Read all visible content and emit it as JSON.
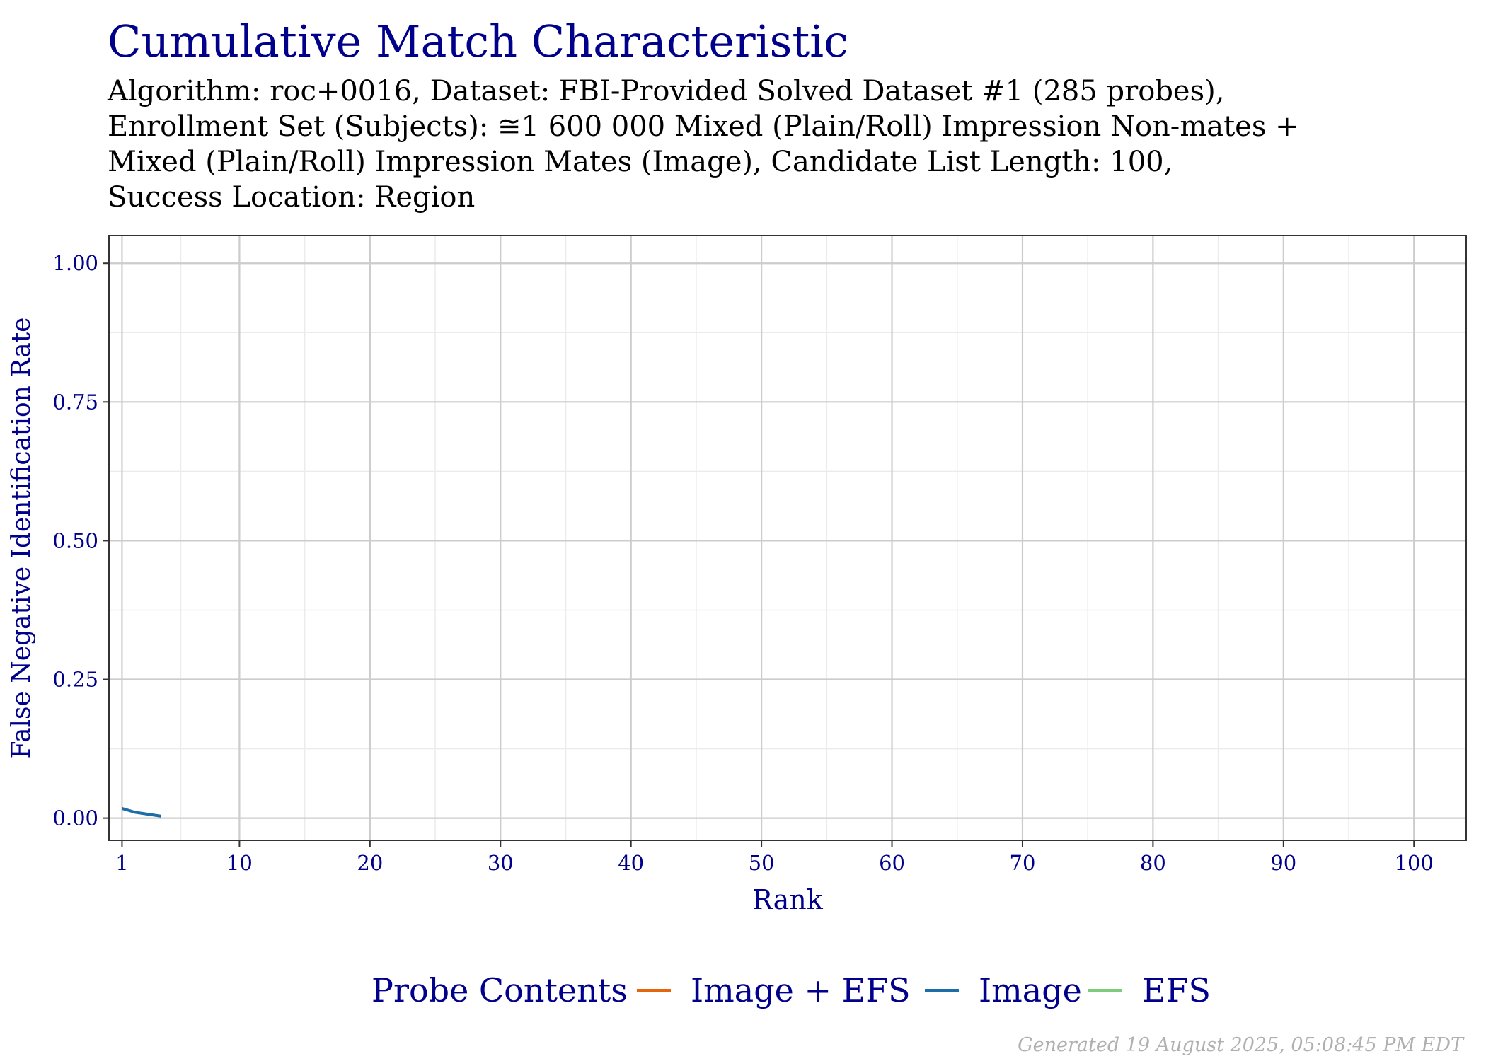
{
  "chart_data": {
    "type": "line",
    "title": "Cumulative Match Characteristic",
    "subtitle_lines": [
      "Algorithm: roc+0016, Dataset: FBI-Provided Solved Dataset #1 (285 probes),",
      "Enrollment Set (Subjects): ≅1 600 000 Mixed (Plain/Roll) Impression Non-mates +",
      "Mixed (Plain/Roll) Impression Mates (Image), Candidate List Length: 100,",
      "Success Location: Region"
    ],
    "xlabel": "Rank",
    "ylabel": "False Negative Identification Rate",
    "xlim": [
      0,
      104
    ],
    "ylim": [
      -0.04,
      1.05
    ],
    "x_ticks": [
      1,
      10,
      20,
      30,
      40,
      50,
      60,
      70,
      80,
      90,
      100
    ],
    "x_tick_labels": [
      "1",
      "10",
      "20",
      "30",
      "40",
      "50",
      "60",
      "70",
      "80",
      "90",
      "100"
    ],
    "y_ticks": [
      0,
      0.25,
      0.5,
      0.75,
      1.0
    ],
    "y_tick_labels": [
      "0.00",
      "0.25",
      "0.50",
      "0.75",
      "1.00"
    ],
    "grid": true,
    "legend": {
      "title": "Probe Contents",
      "position": "bottom",
      "entries": [
        {
          "name": "Image + EFS",
          "color": "#e6650c"
        },
        {
          "name": "Image",
          "color": "#1b6ea8"
        },
        {
          "name": "EFS",
          "color": "#7dcc7a"
        }
      ]
    },
    "series": [
      {
        "name": "Image + EFS",
        "color": "#e6650c",
        "x": [],
        "y": []
      },
      {
        "name": "Image",
        "color": "#1b6ea8",
        "x": [
          1,
          2,
          3,
          4
        ],
        "y": [
          0.0175,
          0.0105,
          0.007,
          0.0035
        ]
      },
      {
        "name": "EFS",
        "color": "#7dcc7a",
        "x": [],
        "y": []
      }
    ]
  },
  "footer": "Generated 19 August 2025, 05:08:45 PM EDT",
  "colors": {
    "title": "#00008b",
    "axis_text": "#00008b",
    "grid_major": "#cccccc",
    "grid_minor": "#ebebeb",
    "panel_border": "#333333"
  }
}
